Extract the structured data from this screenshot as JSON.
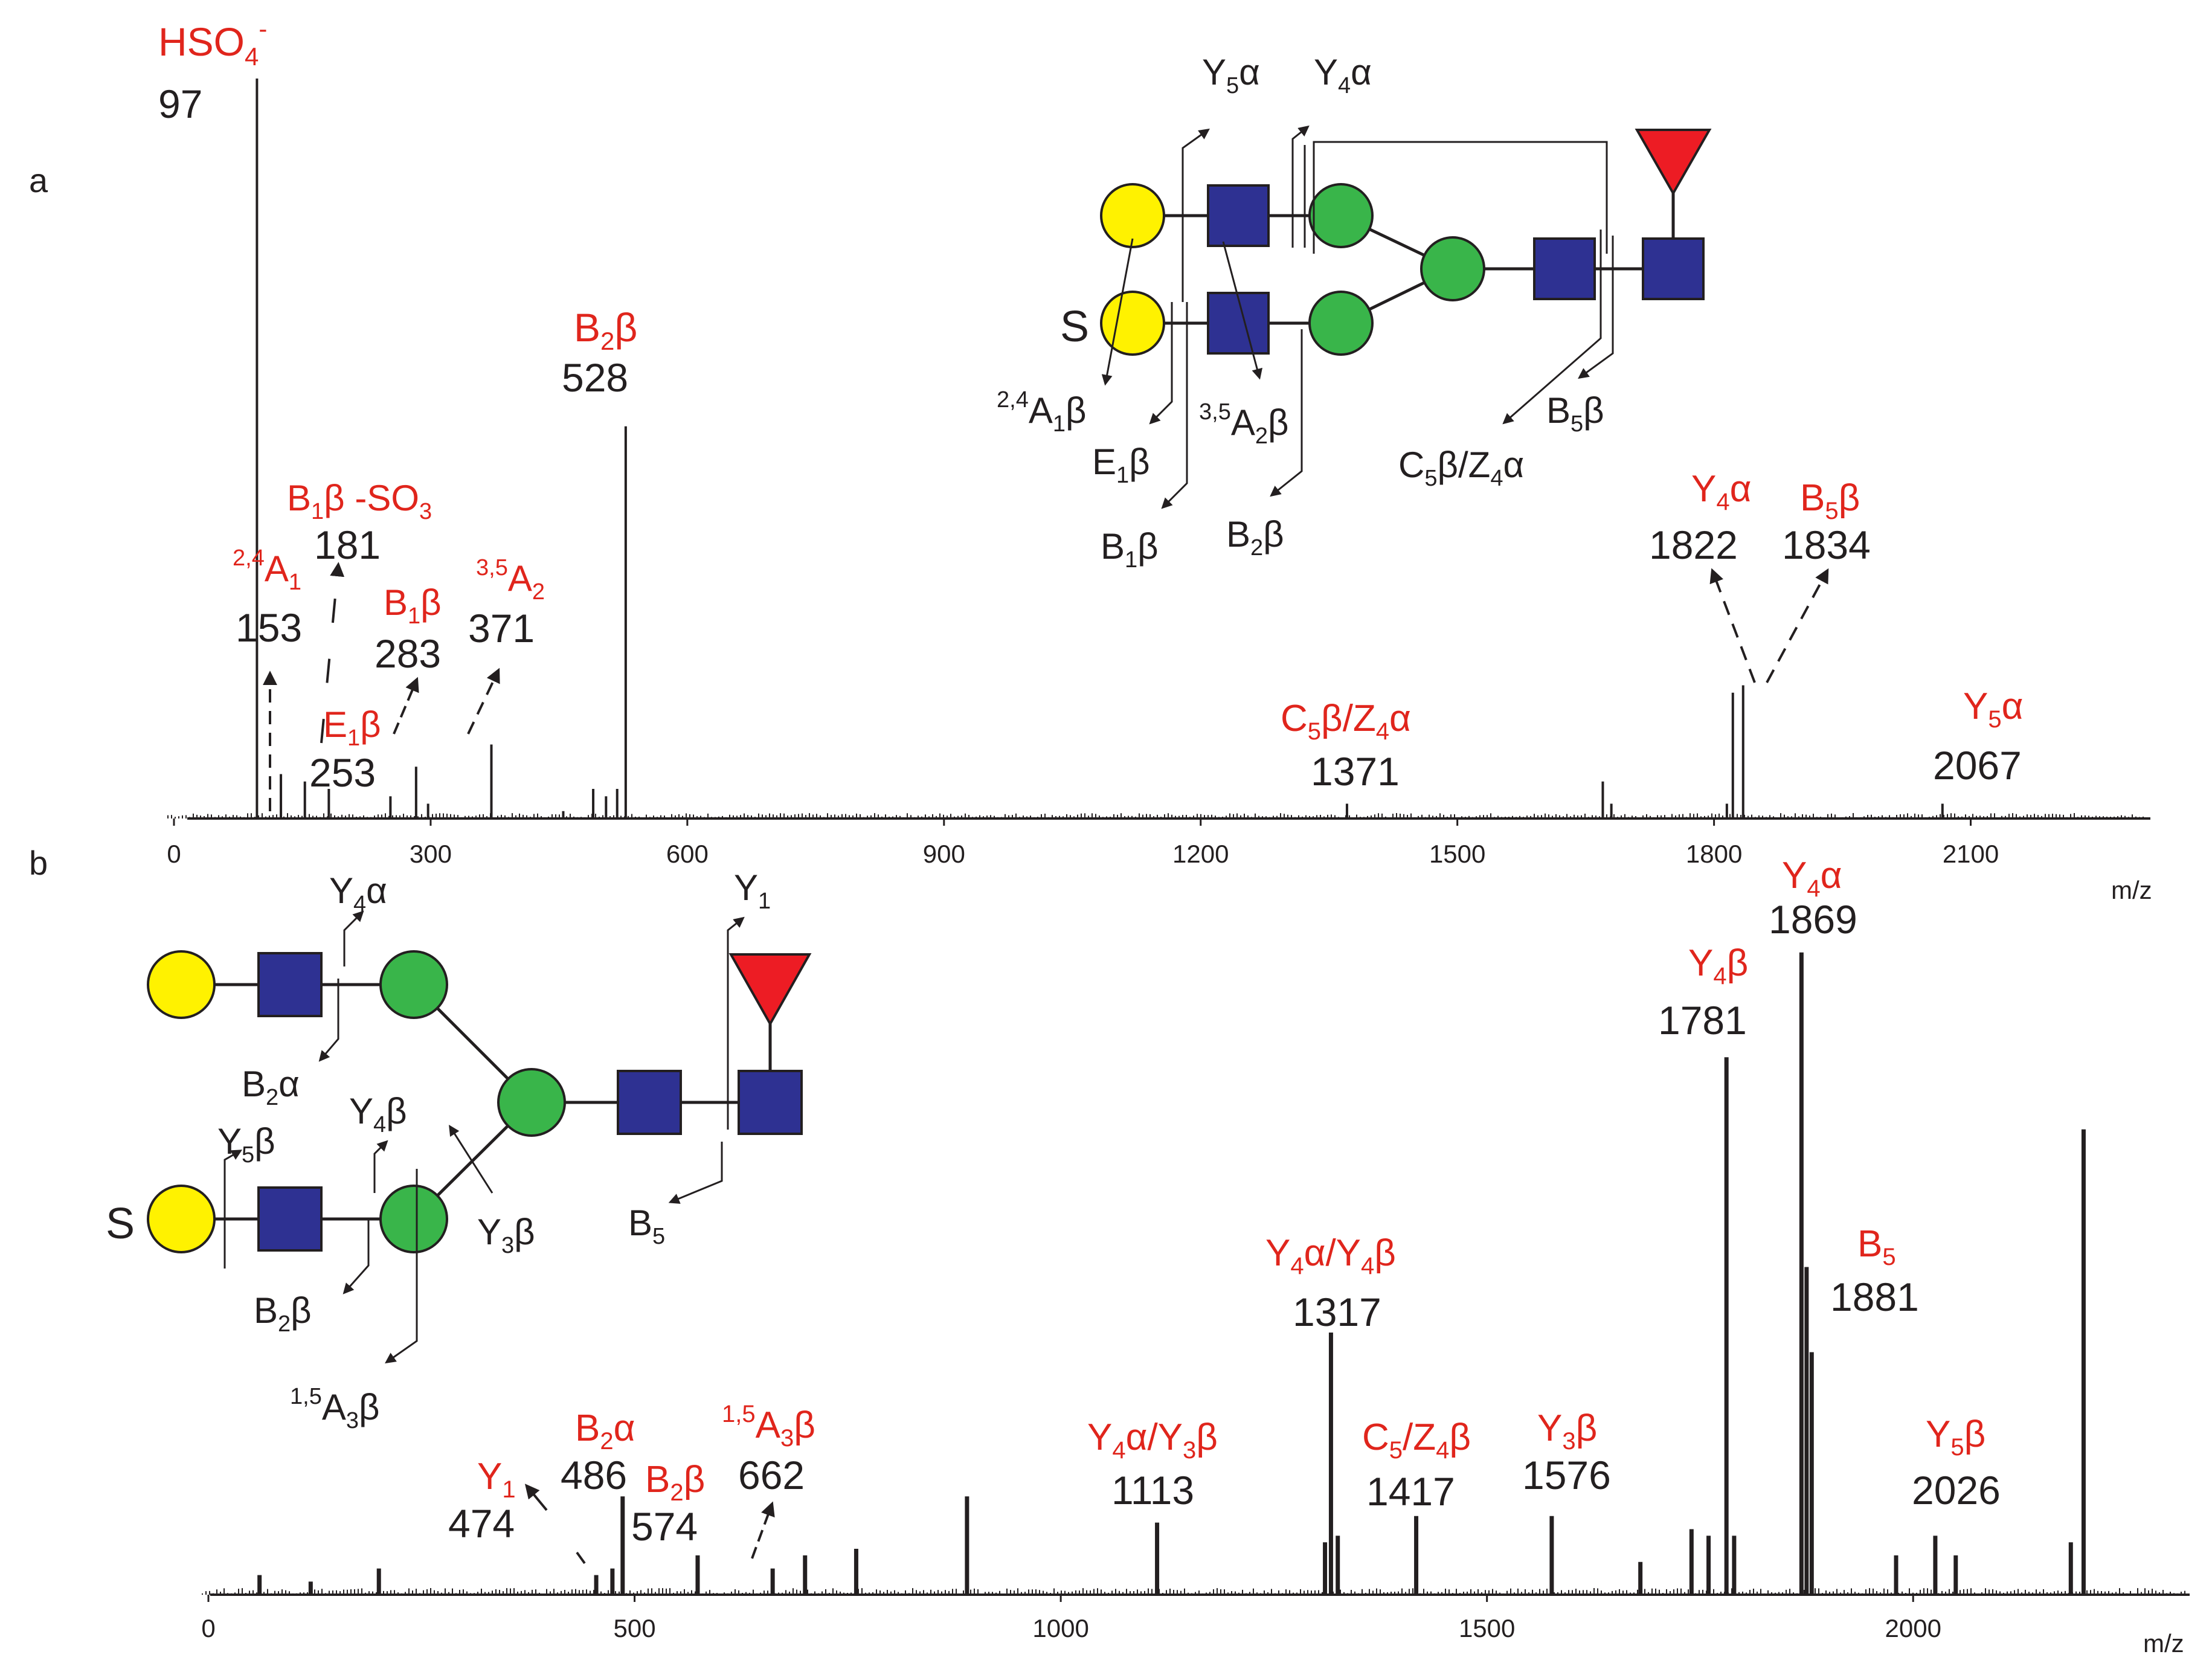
{
  "chart_data": [
    {
      "panel": "a",
      "type": "bar",
      "xlabel": "m/z",
      "ylabel": "",
      "xlim": [
        0,
        2250
      ],
      "ylim": [
        0,
        100
      ],
      "ticks": [
        0,
        300,
        600,
        900,
        1200,
        1500,
        1800,
        2100
      ],
      "peaks": [
        {
          "mz": 97,
          "intensity": 100
        },
        {
          "mz": 125,
          "intensity": 6
        },
        {
          "mz": 153,
          "intensity": 5
        },
        {
          "mz": 181,
          "intensity": 4
        },
        {
          "mz": 253,
          "intensity": 3
        },
        {
          "mz": 283,
          "intensity": 7
        },
        {
          "mz": 297,
          "intensity": 2
        },
        {
          "mz": 371,
          "intensity": 10
        },
        {
          "mz": 455,
          "intensity": 1
        },
        {
          "mz": 490,
          "intensity": 4
        },
        {
          "mz": 505,
          "intensity": 3
        },
        {
          "mz": 518,
          "intensity": 4
        },
        {
          "mz": 528,
          "intensity": 53
        },
        {
          "mz": 1371,
          "intensity": 2
        },
        {
          "mz": 1670,
          "intensity": 5
        },
        {
          "mz": 1680,
          "intensity": 2
        },
        {
          "mz": 1815,
          "intensity": 2
        },
        {
          "mz": 1822,
          "intensity": 17
        },
        {
          "mz": 1834,
          "intensity": 18
        },
        {
          "mz": 2067,
          "intensity": 2
        }
      ],
      "annotations": [
        {
          "mz_label": "97",
          "ion": "HSO4-"
        },
        {
          "mz_label": "528",
          "ion": "B2β"
        },
        {
          "mz_label": "181",
          "ion": "B1β -SO3"
        },
        {
          "mz_label": "153",
          "ion": "2,4A1"
        },
        {
          "mz_label": "283",
          "ion": "B1β"
        },
        {
          "mz_label": "371",
          "ion": "3,5A2"
        },
        {
          "mz_label": "253",
          "ion": "E1β"
        },
        {
          "mz_label": "1371",
          "ion": "C5β/Z4α"
        },
        {
          "mz_label": "1822",
          "ion": "Y4α"
        },
        {
          "mz_label": "1834",
          "ion": "B5β"
        },
        {
          "mz_label": "2067",
          "ion": "Y5α"
        }
      ]
    },
    {
      "panel": "b",
      "type": "bar",
      "xlabel": "m/z",
      "ylabel": "",
      "xlim": [
        0,
        2250
      ],
      "ylim": [
        0,
        100
      ],
      "ticks": [
        0,
        500,
        1000,
        1500,
        2000
      ],
      "peaks": [
        {
          "mz": 60,
          "intensity": 3
        },
        {
          "mz": 120,
          "intensity": 2
        },
        {
          "mz": 200,
          "intensity": 4
        },
        {
          "mz": 455,
          "intensity": 3
        },
        {
          "mz": 474,
          "intensity": 4
        },
        {
          "mz": 486,
          "intensity": 15
        },
        {
          "mz": 574,
          "intensity": 6
        },
        {
          "mz": 662,
          "intensity": 4
        },
        {
          "mz": 700,
          "intensity": 6
        },
        {
          "mz": 760,
          "intensity": 7
        },
        {
          "mz": 890,
          "intensity": 15
        },
        {
          "mz": 1113,
          "intensity": 11
        },
        {
          "mz": 1310,
          "intensity": 8
        },
        {
          "mz": 1317,
          "intensity": 40
        },
        {
          "mz": 1325,
          "intensity": 9
        },
        {
          "mz": 1417,
          "intensity": 12
        },
        {
          "mz": 1576,
          "intensity": 12
        },
        {
          "mz": 1680,
          "intensity": 5
        },
        {
          "mz": 1740,
          "intensity": 10
        },
        {
          "mz": 1760,
          "intensity": 9
        },
        {
          "mz": 1781,
          "intensity": 82
        },
        {
          "mz": 1790,
          "intensity": 9
        },
        {
          "mz": 1869,
          "intensity": 98
        },
        {
          "mz": 1875,
          "intensity": 50
        },
        {
          "mz": 1881,
          "intensity": 37
        },
        {
          "mz": 1980,
          "intensity": 6
        },
        {
          "mz": 2026,
          "intensity": 9
        },
        {
          "mz": 2050,
          "intensity": 6
        },
        {
          "mz": 2185,
          "intensity": 8
        },
        {
          "mz": 2200,
          "intensity": 71
        }
      ],
      "annotations": [
        {
          "mz_label": "1869",
          "ion": "Y4α"
        },
        {
          "mz_label": "1781",
          "ion": "Y4β"
        },
        {
          "mz_label": "1881",
          "ion": "B5"
        },
        {
          "mz_label": "1317",
          "ion": "Y4α/Y4β"
        },
        {
          "mz_label": "1417",
          "ion": "C5/Z4β"
        },
        {
          "mz_label": "1576",
          "ion": "Y3β"
        },
        {
          "mz_label": "2026",
          "ion": "Y5β"
        },
        {
          "mz_label": "1113",
          "ion": "Y4α/Y3β"
        },
        {
          "mz_label": "474",
          "ion": "Y1"
        },
        {
          "mz_label": "486",
          "ion": "B2α"
        },
        {
          "mz_label": "574",
          "ion": "B2β"
        },
        {
          "mz_label": "662",
          "ion": "1,5A3β"
        }
      ]
    }
  ],
  "panel_labels": {
    "a": "a",
    "b": "b"
  },
  "colors": {
    "text": "#231f20",
    "label_red": "#e0251c",
    "galactose": "#fff200",
    "glcnac": "#2e3192",
    "mannose": "#39b54a",
    "fucose": "#ed1c24"
  },
  "sulfate_label": "S",
  "structure_a_labels": {
    "Y5a": "Y5α",
    "Y4a": "Y4α",
    "A1b": "2,4A1β",
    "E1b": "E1β",
    "A2b": "3,5A2β",
    "B1b": "B1β",
    "B2b": "B2β",
    "C5Z4": "C5β/Z4α",
    "B5b": "B5β"
  },
  "structure_b_labels": {
    "Y4a": "Y4α",
    "Y1": "Y1",
    "B2a": "B2α",
    "Y4b": "Y4β",
    "Y5b": "Y5β",
    "Y3b": "Y3β",
    "B2b": "B2β",
    "A3b": "1,5A3β",
    "B5": "B5"
  }
}
